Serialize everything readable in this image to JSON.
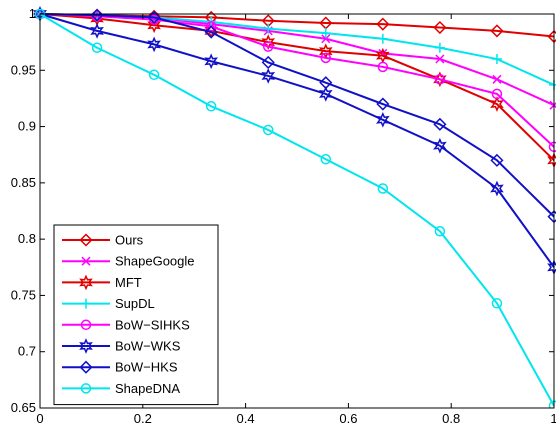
{
  "chart_data": {
    "type": "line",
    "title": "",
    "xlabel": "",
    "ylabel": "",
    "xlim": [
      0,
      1
    ],
    "ylim": [
      0.65,
      1
    ],
    "x_ticks": [
      "0",
      "0.2",
      "0.4",
      "0.6",
      "0.8",
      "1"
    ],
    "y_ticks": [
      "0.65",
      "0.7",
      "0.75",
      "0.8",
      "0.85",
      "0.9",
      "0.95",
      "1"
    ],
    "grid": false,
    "legend_position": "bottom-left",
    "x": [
      0,
      0.111,
      0.222,
      0.333,
      0.444,
      0.556,
      0.667,
      0.778,
      0.889,
      1
    ],
    "series": [
      {
        "name": "Ours",
        "color": "#e00000",
        "marker": "diamond",
        "values": [
          1.0,
          0.999,
          0.998,
          0.997,
          0.994,
          0.992,
          0.991,
          0.988,
          0.985,
          0.98
        ]
      },
      {
        "name": "ShapeGoogle",
        "color": "#ff00ff",
        "marker": "x",
        "values": [
          1.0,
          0.998,
          0.997,
          0.991,
          0.985,
          0.978,
          0.965,
          0.96,
          0.942,
          0.919
        ]
      },
      {
        "name": "MFT",
        "color": "#e00000",
        "marker": "star",
        "values": [
          1.0,
          0.996,
          0.99,
          0.985,
          0.975,
          0.967,
          0.963,
          0.942,
          0.92,
          0.87
        ]
      },
      {
        "name": "SupDL",
        "color": "#00e5ee",
        "marker": "plus",
        "values": [
          1.0,
          0.999,
          0.997,
          0.993,
          0.987,
          0.983,
          0.978,
          0.97,
          0.96,
          0.937
        ]
      },
      {
        "name": "BoW−SIHKS",
        "color": "#ff00ff",
        "marker": "circle",
        "values": [
          1.0,
          0.998,
          0.995,
          0.989,
          0.971,
          0.961,
          0.953,
          0.942,
          0.929,
          0.882
        ]
      },
      {
        "name": "BoW−WKS",
        "color": "#1010c8",
        "marker": "star",
        "values": [
          1.0,
          0.985,
          0.973,
          0.958,
          0.945,
          0.929,
          0.906,
          0.883,
          0.845,
          0.775
        ]
      },
      {
        "name": "BoW−HKS",
        "color": "#1010c8",
        "marker": "diamond",
        "values": [
          1.0,
          0.999,
          0.997,
          0.984,
          0.957,
          0.939,
          0.92,
          0.902,
          0.87,
          0.82
        ]
      },
      {
        "name": "ShapeDNA",
        "color": "#00e5ee",
        "marker": "circle",
        "values": [
          1.0,
          0.97,
          0.946,
          0.918,
          0.897,
          0.871,
          0.845,
          0.807,
          0.743,
          0.652
        ]
      }
    ]
  }
}
